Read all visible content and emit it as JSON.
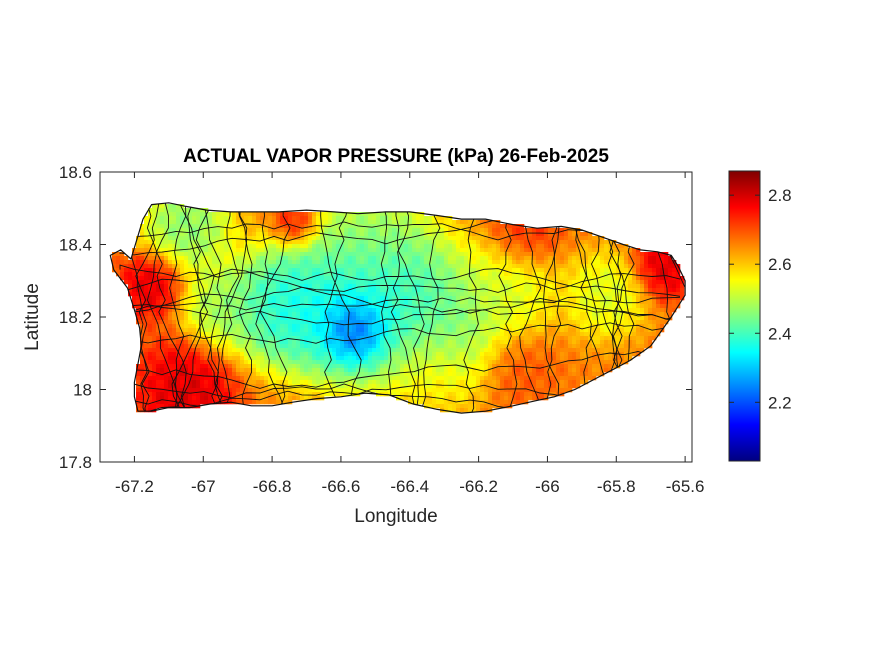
{
  "chart_data": {
    "type": "heatmap",
    "title": "ACTUAL VAPOR PRESSURE (kPa) 26-Feb-2025",
    "xlabel": "Longitude",
    "ylabel": "Latitude",
    "xlim": [
      -67.3,
      -65.58
    ],
    "ylim": [
      17.8,
      18.6
    ],
    "x_ticks": [
      -67.2,
      -67,
      -66.8,
      -66.6,
      -66.4,
      -66.2,
      -66,
      -65.8,
      -65.6
    ],
    "x_tick_labels": [
      "-67.2",
      "-67",
      "-66.8",
      "-66.6",
      "-66.4",
      "-66.2",
      "-66",
      "-65.8",
      "-65.6"
    ],
    "y_ticks": [
      17.8,
      18,
      18.2,
      18.4,
      18.6
    ],
    "y_tick_labels": [
      "17.8",
      "18",
      "18.2",
      "18.4",
      "18.6"
    ],
    "colorbar": {
      "colormap": "jet",
      "clim": [
        2.03,
        2.87
      ],
      "ticks": [
        2.2,
        2.4,
        2.6,
        2.8
      ],
      "tick_labels": [
        "2.2",
        "2.4",
        "2.6",
        "2.8"
      ]
    },
    "colormap_stops": [
      "#00007f",
      "#0000ff",
      "#0080ff",
      "#00ffff",
      "#80ff80",
      "#ffff00",
      "#ff8000",
      "#ff0000",
      "#7f0000"
    ],
    "island_outline": [
      [
        -67.27,
        18.37
      ],
      [
        -67.24,
        18.385
      ],
      [
        -67.21,
        18.36
      ],
      [
        -67.175,
        18.47
      ],
      [
        -67.15,
        18.51
      ],
      [
        -67.1,
        18.515
      ],
      [
        -67.05,
        18.505
      ],
      [
        -66.99,
        18.495
      ],
      [
        -66.92,
        18.49
      ],
      [
        -66.85,
        18.49
      ],
      [
        -66.78,
        18.49
      ],
      [
        -66.7,
        18.495
      ],
      [
        -66.62,
        18.49
      ],
      [
        -66.55,
        18.485
      ],
      [
        -66.47,
        18.49
      ],
      [
        -66.4,
        18.49
      ],
      [
        -66.32,
        18.48
      ],
      [
        -66.25,
        18.47
      ],
      [
        -66.18,
        18.47
      ],
      [
        -66.1,
        18.455
      ],
      [
        -66.03,
        18.445
      ],
      [
        -65.96,
        18.45
      ],
      [
        -65.9,
        18.44
      ],
      [
        -65.84,
        18.42
      ],
      [
        -65.78,
        18.4
      ],
      [
        -65.73,
        18.385
      ],
      [
        -65.68,
        18.38
      ],
      [
        -65.64,
        18.37
      ],
      [
        -65.62,
        18.34
      ],
      [
        -65.6,
        18.3
      ],
      [
        -65.6,
        18.26
      ],
      [
        -65.62,
        18.23
      ],
      [
        -65.64,
        18.2
      ],
      [
        -65.67,
        18.16
      ],
      [
        -65.7,
        18.12
      ],
      [
        -65.73,
        18.1
      ],
      [
        -65.76,
        18.08
      ],
      [
        -65.8,
        18.06
      ],
      [
        -65.86,
        18.03
      ],
      [
        -65.92,
        18.0
      ],
      [
        -65.98,
        17.98
      ],
      [
        -66.03,
        17.97
      ],
      [
        -66.1,
        17.955
      ],
      [
        -66.18,
        17.94
      ],
      [
        -66.25,
        17.935
      ],
      [
        -66.32,
        17.945
      ],
      [
        -66.39,
        17.96
      ],
      [
        -66.46,
        17.985
      ],
      [
        -66.53,
        17.99
      ],
      [
        -66.6,
        17.98
      ],
      [
        -66.67,
        17.975
      ],
      [
        -66.74,
        17.965
      ],
      [
        -66.8,
        17.955
      ],
      [
        -66.86,
        17.955
      ],
      [
        -66.92,
        17.965
      ],
      [
        -66.98,
        17.96
      ],
      [
        -67.04,
        17.95
      ],
      [
        -67.1,
        17.95
      ],
      [
        -67.15,
        17.94
      ],
      [
        -67.19,
        17.94
      ],
      [
        -67.2,
        17.98
      ],
      [
        -67.2,
        18.02
      ],
      [
        -67.19,
        18.07
      ],
      [
        -67.18,
        18.12
      ],
      [
        -67.185,
        18.17
      ],
      [
        -67.2,
        18.22
      ],
      [
        -67.22,
        18.28
      ],
      [
        -67.26,
        18.33
      ],
      [
        -67.27,
        18.37
      ]
    ],
    "field_hotspots": [
      {
        "lon": -66.56,
        "lat": 18.17,
        "radius_deg": 0.07,
        "value": 2.05
      },
      {
        "lon": -66.62,
        "lat": 18.22,
        "radius_deg": 0.14,
        "value": 2.3
      },
      {
        "lon": -66.45,
        "lat": 18.24,
        "radius_deg": 0.16,
        "value": 2.32
      },
      {
        "lon": -66.78,
        "lat": 18.23,
        "radius_deg": 0.12,
        "value": 2.33
      },
      {
        "lon": -66.95,
        "lat": 18.22,
        "radius_deg": 0.09,
        "value": 2.45
      },
      {
        "lon": -66.3,
        "lat": 18.17,
        "radius_deg": 0.13,
        "value": 2.42
      },
      {
        "lon": -66.53,
        "lat": 18.39,
        "radius_deg": 0.14,
        "value": 2.45
      },
      {
        "lon": -67.05,
        "lat": 18.45,
        "radius_deg": 0.1,
        "value": 2.42
      },
      {
        "lon": -66.12,
        "lat": 18.28,
        "radius_deg": 0.11,
        "value": 2.5
      },
      {
        "lon": -65.83,
        "lat": 18.26,
        "radius_deg": 0.09,
        "value": 2.5
      },
      {
        "lon": -67.15,
        "lat": 18.29,
        "radius_deg": 0.07,
        "value": 2.82
      },
      {
        "lon": -67.05,
        "lat": 18.0,
        "radius_deg": 0.11,
        "value": 2.82
      },
      {
        "lon": -65.66,
        "lat": 18.34,
        "radius_deg": 0.07,
        "value": 2.82
      },
      {
        "lon": -66.07,
        "lat": 18.43,
        "radius_deg": 0.08,
        "value": 2.75
      },
      {
        "lon": -66.73,
        "lat": 18.46,
        "radius_deg": 0.05,
        "value": 2.78
      },
      {
        "lon": -66.33,
        "lat": 18.05,
        "radius_deg": 0.1,
        "value": 2.58
      },
      {
        "lon": -66.08,
        "lat": 18.05,
        "radius_deg": 0.08,
        "value": 2.7
      }
    ],
    "field_base_value": 2.66
  }
}
